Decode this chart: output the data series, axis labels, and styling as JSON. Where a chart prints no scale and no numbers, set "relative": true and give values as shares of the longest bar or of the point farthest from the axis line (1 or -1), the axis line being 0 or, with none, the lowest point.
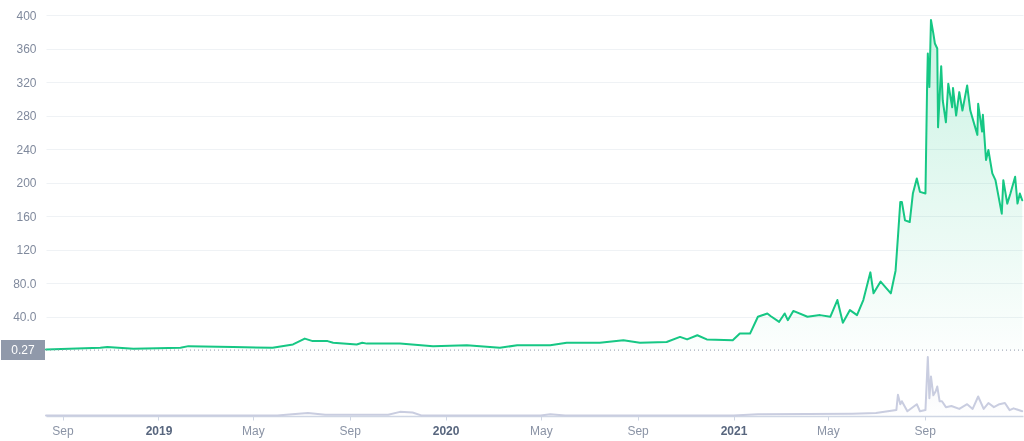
{
  "chart_data": [
    {
      "type": "area",
      "xlim": [
        "2018-08-11",
        "2022-01-04"
      ],
      "ylim": [
        -2,
        400
      ],
      "yticks": [
        {
          "value": 40,
          "label": "40.0"
        },
        {
          "value": 80,
          "label": "80.0"
        },
        120,
        160,
        200,
        240,
        280,
        320,
        360,
        400
      ],
      "grid": "y",
      "tick_labels": "y",
      "ref_lines": [
        {
          "axis": "y",
          "value": 0.27,
          "label": "0.27",
          "color": "#9099aa",
          "line_style": "dotted"
        }
      ],
      "x": [
        "2018-08-11",
        "2018-10-19",
        "2018-10-28",
        "2018-11-30",
        "2019-01-29",
        "2019-02-08",
        "2019-04-06",
        "2019-05-26",
        "2019-06-01",
        "2019-06-21",
        "2019-07-06",
        "2019-07-16",
        "2019-08-04",
        "2019-08-11",
        "2019-09-10",
        "2019-09-17",
        "2019-09-23",
        "2019-11-04",
        "2019-12-16",
        "2020-01-28",
        "2020-03-10",
        "2020-04-01",
        "2020-05-13",
        "2020-06-03",
        "2020-07-15",
        "2020-08-14",
        "2020-09-04",
        "2020-10-08",
        "2020-10-25",
        "2020-11-03",
        "2020-11-16",
        "2020-11-28",
        "2020-12-31",
        "2021-01-09",
        "2021-01-22",
        "2021-02-01",
        "2021-02-13",
        "2021-02-17",
        "2021-02-28",
        "2021-03-07",
        "2021-03-11",
        "2021-03-18",
        "2021-04-05",
        "2021-04-21",
        "2021-05-04",
        "2021-05-13",
        "2021-05-20",
        "2021-05-29",
        "2021-06-07",
        "2021-06-15",
        "2021-06-24",
        "2021-06-28",
        "2021-07-07",
        "2021-07-20",
        "2021-07-26",
        "2021-07-29",
        "2021-08-01",
        "2021-08-03",
        "2021-08-07",
        "2021-08-13",
        "2021-08-17",
        "2021-08-22",
        "2021-08-26",
        "2021-09-02",
        "2021-09-04",
        "2021-09-05",
        "2021-09-07",
        "2021-09-09",
        "2021-09-12",
        "2021-09-14",
        "2021-09-17",
        "2021-09-18",
        "2021-09-22",
        "2021-09-24",
        "2021-09-28",
        "2021-10-01",
        "2021-10-06",
        "2021-10-07",
        "2021-10-11",
        "2021-10-15",
        "2021-10-19",
        "2021-10-25",
        "2021-10-29",
        "2021-11-07",
        "2021-11-08",
        "2021-11-13",
        "2021-11-14",
        "2021-11-18",
        "2021-11-21",
        "2021-11-26",
        "2021-11-30",
        "2021-12-08",
        "2021-12-10",
        "2021-12-15",
        "2021-12-19",
        "2021-12-25",
        "2021-12-28",
        "2021-12-31",
        "2022-01-03"
      ],
      "series": [
        {
          "color": "#16c784",
          "values": [
            1,
            3,
            4,
            2,
            3,
            5,
            4,
            3,
            4,
            7,
            14,
            11,
            11,
            9,
            7,
            9,
            8,
            8,
            5,
            6,
            3,
            6,
            6,
            9,
            9,
            12,
            9,
            10,
            16,
            13,
            18,
            13,
            12,
            20,
            20,
            40,
            44,
            41,
            34,
            44,
            36,
            47,
            40,
            42,
            40,
            60,
            33,
            48,
            42,
            60,
            93,
            68,
            82,
            68,
            95,
            135,
            177,
            177,
            155,
            153,
            187,
            205,
            189,
            187,
            310,
            354,
            314,
            394,
            378,
            366,
            360,
            266,
            339,
            298,
            272,
            318,
            290,
            313,
            280,
            308,
            286,
            316,
            286,
            257,
            294,
            261,
            281,
            227,
            239,
            211,
            203,
            163,
            203,
            175,
            187,
            207,
            175,
            187,
            179
          ]
        }
      ]
    },
    {
      "type": "area",
      "relative": true,
      "xlim": [
        "2018-08-11",
        "2022-01-04"
      ],
      "xticks": [
        {
          "value": "2018-09-01",
          "label": "Sep"
        },
        {
          "value": "2019-01-01",
          "label": "2019"
        },
        {
          "value": "2019-05-01",
          "label": "May"
        },
        {
          "value": "2019-09-01",
          "label": "Sep"
        },
        {
          "value": "2020-01-01",
          "label": "2020"
        },
        {
          "value": "2020-05-01",
          "label": "May"
        },
        {
          "value": "2020-09-01",
          "label": "Sep"
        },
        {
          "value": "2021-01-01",
          "label": "2021"
        },
        {
          "value": "2021-05-01",
          "label": "May"
        },
        {
          "value": "2021-09-01",
          "label": "Sep"
        }
      ],
      "x": [
        "2018-08-11",
        "2019-06-01",
        "2019-06-20",
        "2019-07-10",
        "2019-08-01",
        "2019-10-20",
        "2019-11-04",
        "2019-11-20",
        "2019-12-01",
        "2020-05-01",
        "2020-05-13",
        "2020-06-01",
        "2021-01-01",
        "2021-02-01",
        "2021-06-01",
        "2021-07-01",
        "2021-07-27",
        "2021-07-29",
        "2021-08-01",
        "2021-08-03",
        "2021-08-10",
        "2021-08-22",
        "2021-08-26",
        "2021-09-02",
        "2021-09-05",
        "2021-09-07",
        "2021-09-09",
        "2021-09-12",
        "2021-09-15",
        "2021-09-17",
        "2021-09-20",
        "2021-09-23",
        "2021-09-28",
        "2021-10-05",
        "2021-10-15",
        "2021-10-25",
        "2021-11-01",
        "2021-11-08",
        "2021-11-15",
        "2021-11-21",
        "2021-11-28",
        "2021-12-05",
        "2021-12-12",
        "2021-12-18",
        "2021-12-23",
        "2022-01-03"
      ],
      "series": [
        {
          "color": "#c9cde0",
          "values": [
            0.01,
            0.01,
            0.03,
            0.05,
            0.02,
            0.02,
            0.07,
            0.06,
            0.01,
            0.01,
            0.03,
            0.01,
            0.01,
            0.03,
            0.04,
            0.05,
            0.1,
            0.36,
            0.2,
            0.25,
            0.08,
            0.2,
            0.08,
            0.1,
            1,
            0.3,
            0.67,
            0.35,
            0.42,
            0.5,
            0.25,
            0.25,
            0.15,
            0.17,
            0.12,
            0.2,
            0.12,
            0.33,
            0.12,
            0.22,
            0.15,
            0.2,
            0.22,
            0.1,
            0.13,
            0.08
          ]
        }
      ]
    }
  ]
}
